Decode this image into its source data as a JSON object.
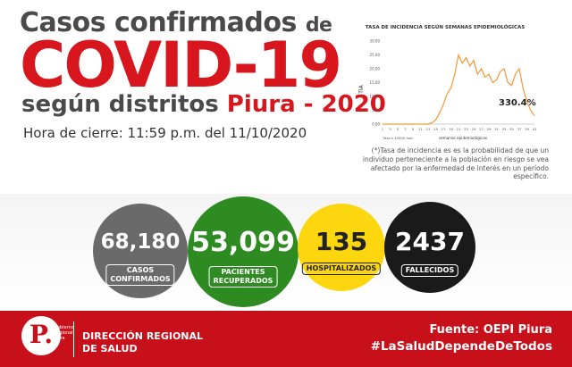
{
  "header": {
    "line1_main": "Casos confirmados",
    "line1_de": "de",
    "line2": "COVID-19",
    "line3_main": "según distritos",
    "line3_highlight": "Piura - 2020",
    "closing_time": "Hora de cierre: 11:59 p.m. del 11/10/2020"
  },
  "chart_data": {
    "type": "line",
    "title": "TASA DE INCIDENCIA SEGÚN SEMANAS EPIDEMIOLÓGICAS",
    "xlabel": "semanas epidemiológicas",
    "ylabel": "TIA",
    "x_note": "Tasa x 10000 hab.",
    "xlim": [
      1,
      41
    ],
    "ylim": [
      0,
      30
    ],
    "xticks": [
      "1",
      "3",
      "5",
      "7",
      "9",
      "11",
      "13",
      "15",
      "17",
      "19",
      "21",
      "23",
      "25",
      "27",
      "29",
      "31",
      "33",
      "35",
      "37",
      "39",
      "41"
    ],
    "yticks": [
      "0.00",
      "5.00",
      "10.00",
      "15.00",
      "20.00",
      "25.00",
      "30.00"
    ],
    "series": [
      {
        "x": [
          1,
          2,
          3,
          4,
          5,
          6,
          7,
          8,
          9,
          10,
          11,
          12,
          13,
          14,
          15,
          16,
          17,
          18,
          19,
          20,
          21,
          22,
          23,
          24,
          25,
          26,
          27,
          28,
          29,
          30,
          31,
          32,
          33,
          34,
          35,
          36,
          37,
          38,
          39,
          40,
          41
        ],
        "y": [
          0,
          0,
          0,
          0,
          0,
          0,
          0,
          0,
          0,
          0,
          0,
          0,
          0,
          0.5,
          1.5,
          4,
          7,
          11,
          13,
          18,
          25,
          22,
          24,
          21,
          23,
          18,
          20,
          17,
          18,
          15,
          16,
          19,
          20,
          15,
          14,
          18,
          20,
          13,
          8,
          5,
          3
        ]
      }
    ],
    "annotation": "330.4%",
    "line_color": "#f29a3a"
  },
  "note": "(*)Tasa de incidencia es es la probabilidad de que un individuo perteneciente a la población en riesgo se vea afectado por la enfermedad de interés en un período específico.",
  "stats": [
    {
      "value": "68,180",
      "label_line1": "CASOS",
      "label_line2": "CONFIRMADOS",
      "color": "#6a6a6a"
    },
    {
      "value": "53,099",
      "label_line1": "PACIENTES",
      "label_line2": "RECUPERADOS",
      "color": "#2e8b22"
    },
    {
      "value": "135",
      "label_line1": "HOSPITALIZADOS",
      "label_line2": "",
      "color": "#fcd60f"
    },
    {
      "value": "2437",
      "label_line1": "FALLECIDOS",
      "label_line2": "",
      "color": "#1a1a1a"
    }
  ],
  "footer": {
    "logo_text": "Gobierno Regional Piura",
    "org_line1": "DIRECCIÓN REGIONAL",
    "org_line2": "DE SALUD",
    "source": "Fuente: OEPI Piura",
    "hashtag": "#LaSaludDependeDeTodos"
  }
}
